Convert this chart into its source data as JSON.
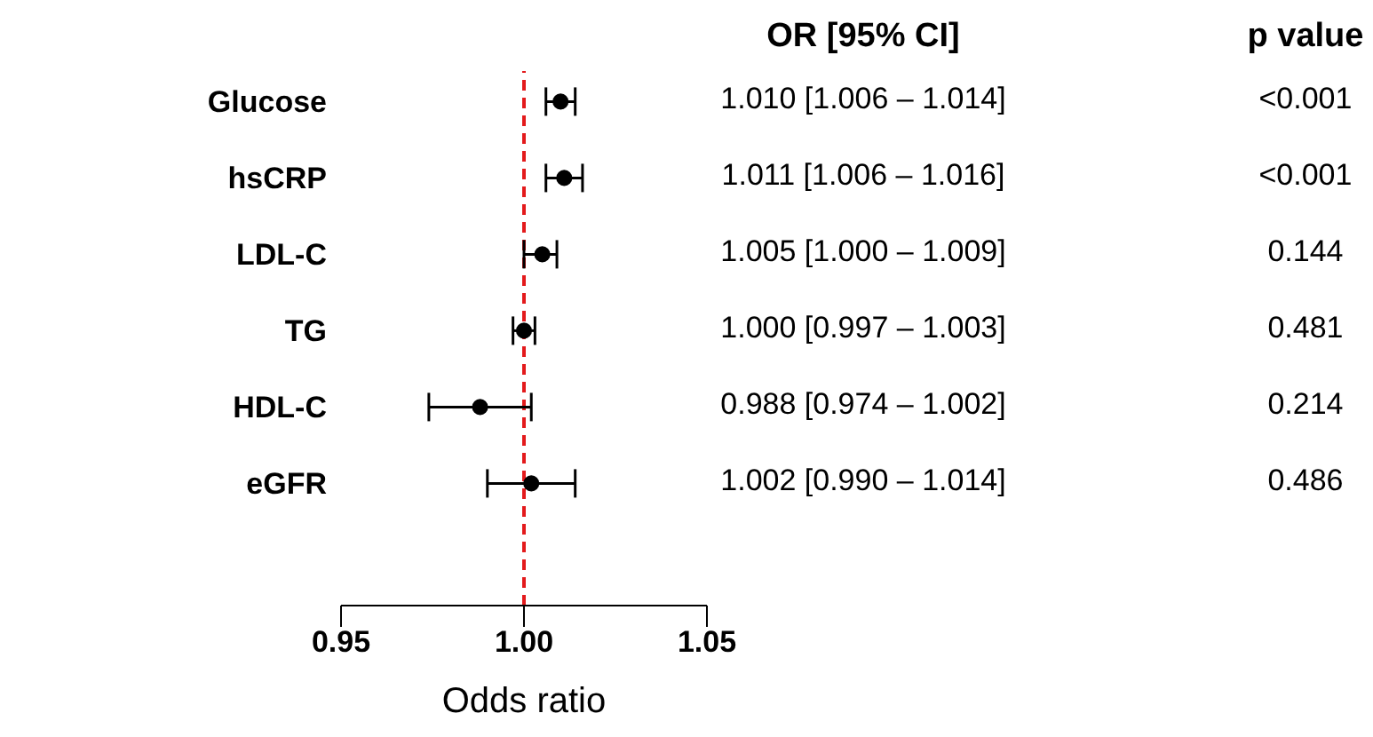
{
  "chart_data": {
    "type": "scatter",
    "orientation": "horizontal",
    "marker": "circle",
    "categories": [
      "Glucose",
      "hsCRP",
      "LDL-C",
      "TG",
      "HDL-C",
      "eGFR"
    ],
    "series": [
      {
        "color": "#000000",
        "values": [
          1.01,
          1.011,
          1.005,
          1.0,
          0.988,
          1.002
        ],
        "errors": [
          [
            1.006,
            1.014
          ],
          [
            1.006,
            1.016
          ],
          [
            1.0,
            1.009
          ],
          [
            0.997,
            1.003
          ],
          [
            0.974,
            1.002
          ],
          [
            0.99,
            1.014
          ]
        ],
        "value_labels": [
          "1.010 [1.006 – 1.014]",
          "1.011 [1.006 – 1.016]",
          "1.005 [1.000 – 1.009]",
          "1.000 [0.997 – 1.003]",
          "0.988 [0.974 – 1.002]",
          "1.002 [0.990 – 1.014]"
        ]
      }
    ],
    "xlim": [
      0.95,
      1.05
    ],
    "xticks": [
      0.95,
      {
        "value": 1,
        "label": "1.00"
      },
      1.05
    ],
    "xlabel": "Odds ratio",
    "ref_lines": [
      {
        "axis": "x",
        "value": 1,
        "color": "#e31a1c",
        "line_style": "dashed"
      }
    ],
    "annotations": [
      "OR [95% CI]",
      "p value",
      "<0.001",
      "<0.001",
      "0.144",
      "0.481",
      "0.214",
      "0.486"
    ]
  }
}
